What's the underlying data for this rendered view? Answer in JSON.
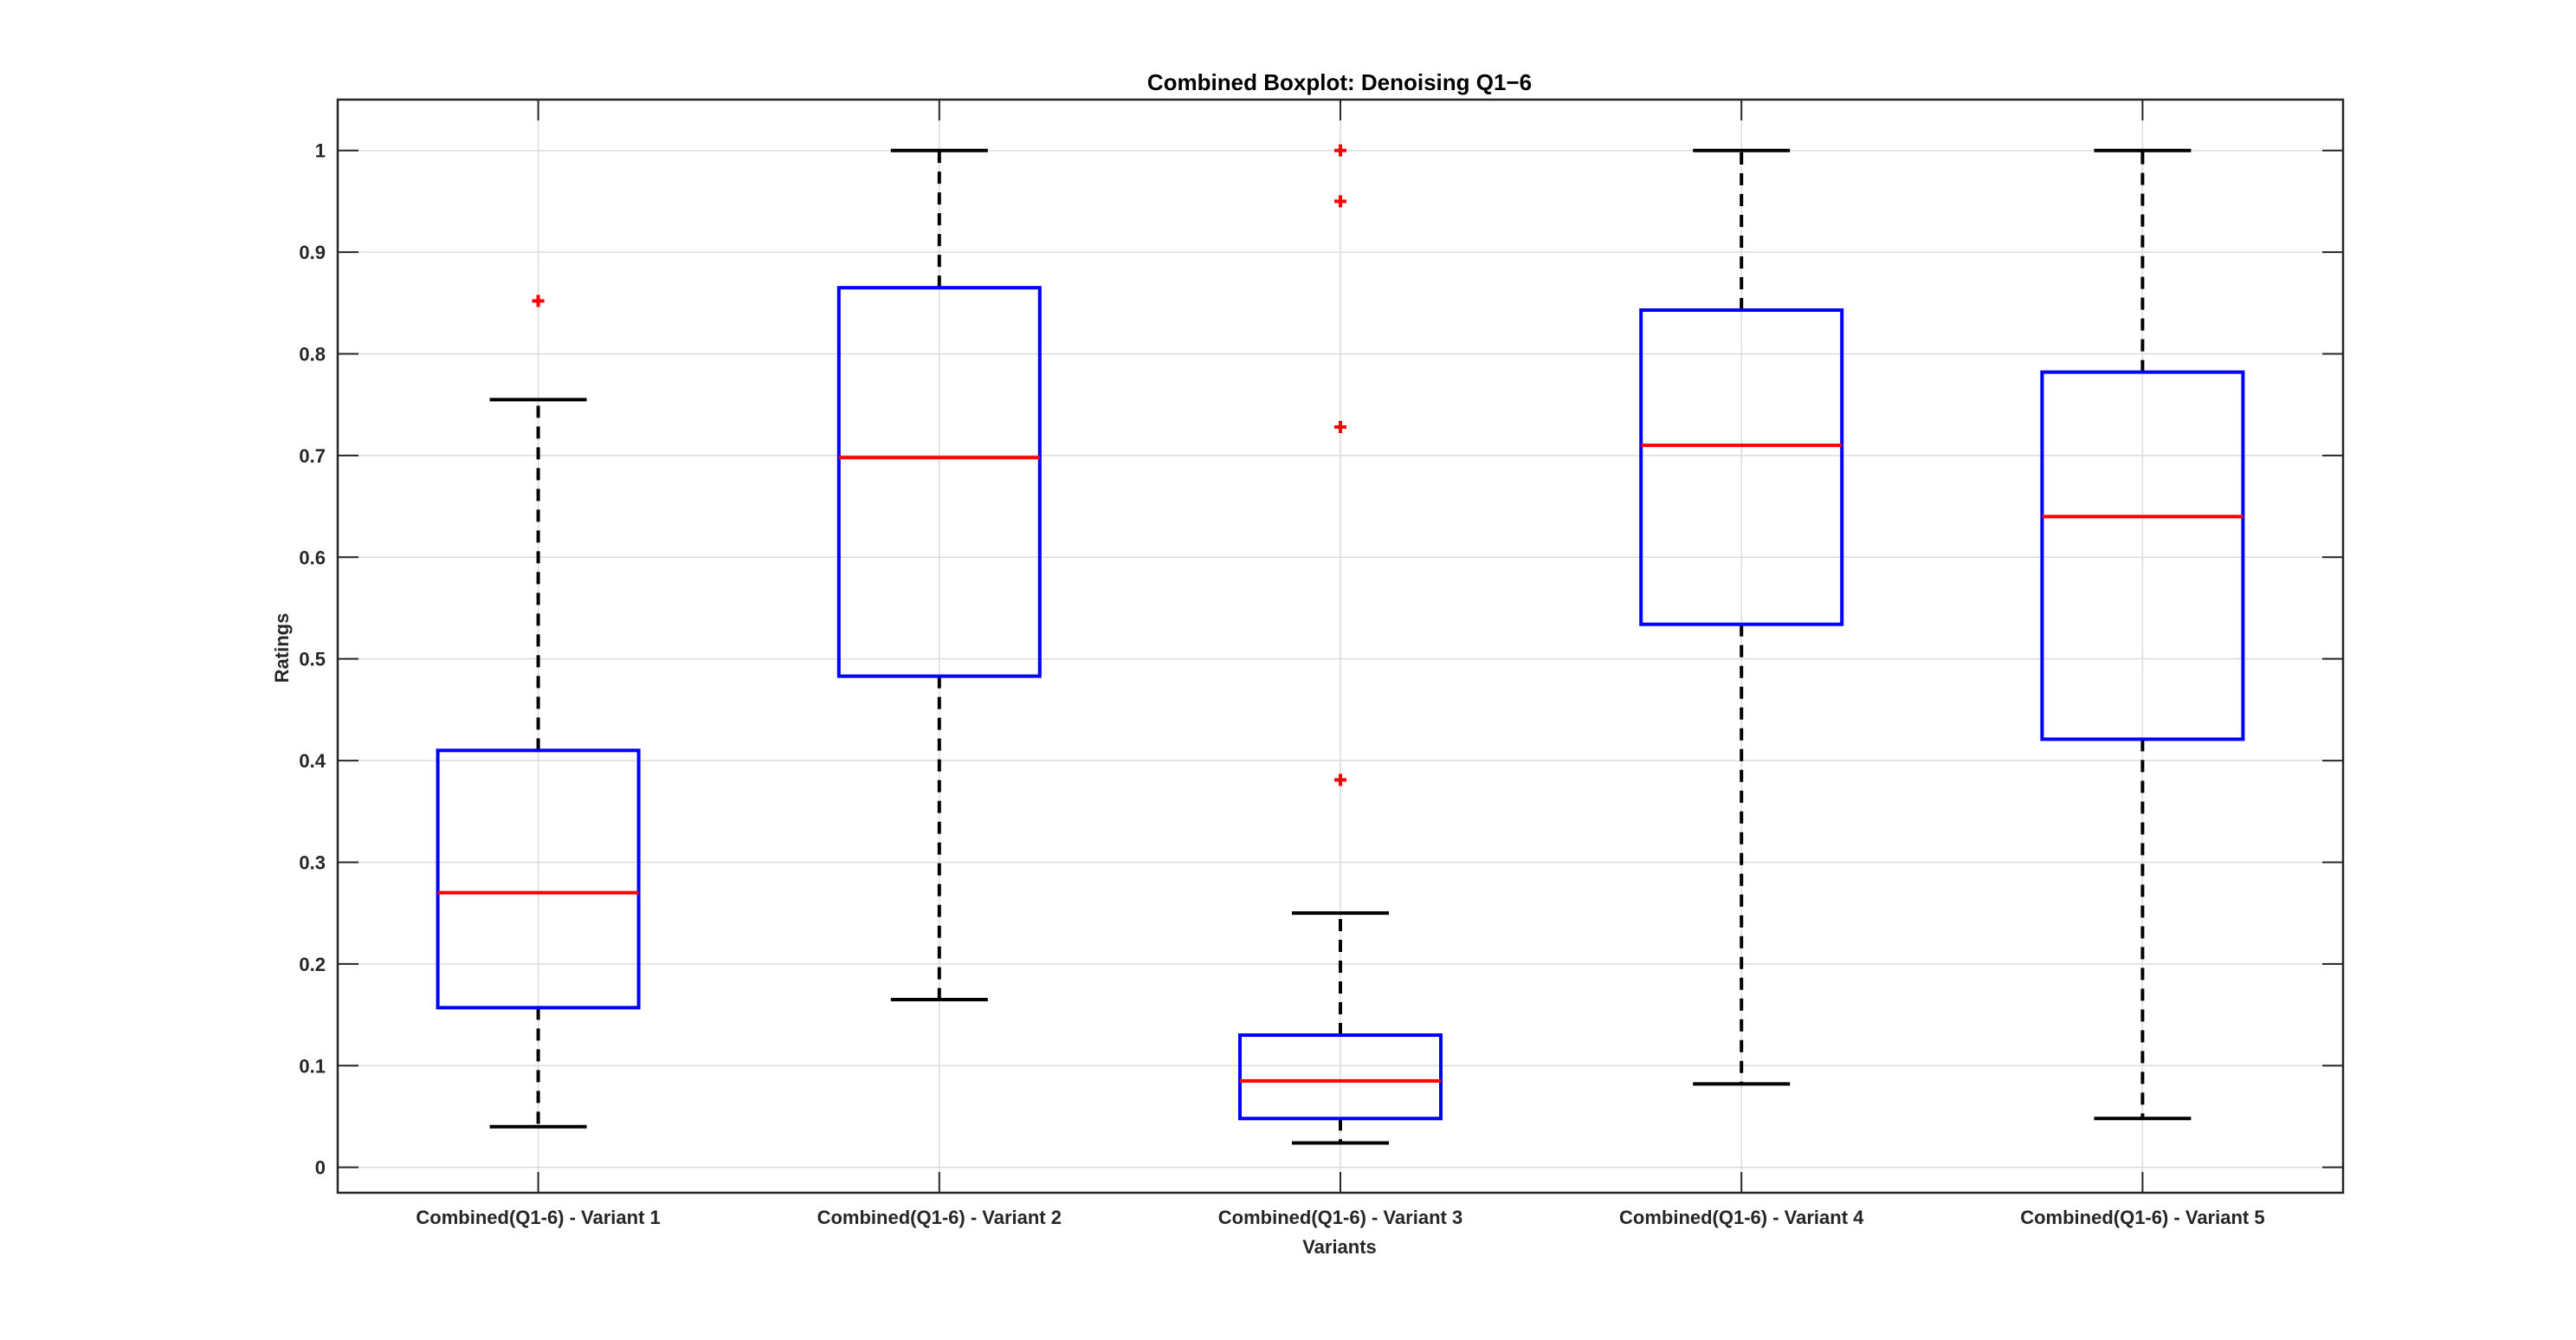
{
  "chart_data": {
    "type": "boxplot",
    "title": "Combined Boxplot: Denoising Q1−6",
    "xlabel": "Variants",
    "ylabel": "Ratings",
    "ylim": [
      -0.025,
      1.05
    ],
    "yticks": [
      0,
      0.1,
      0.2,
      0.3,
      0.4,
      0.5,
      0.6,
      0.7,
      0.8,
      0.9,
      1
    ],
    "yticklabels": [
      "0",
      "0.1",
      "0.2",
      "0.3",
      "0.4",
      "0.5",
      "0.6",
      "0.7",
      "0.8",
      "0.9",
      "1"
    ],
    "grid": true,
    "categories": [
      "Combined(Q1-6) - Variant 1",
      "Combined(Q1-6) - Variant 2",
      "Combined(Q1-6) - Variant 3",
      "Combined(Q1-6) - Variant 4",
      "Combined(Q1-6) - Variant 5"
    ],
    "boxes": [
      {
        "whisker_low": 0.04,
        "q1": 0.157,
        "median": 0.27,
        "q3": 0.41,
        "whisker_high": 0.755,
        "outliers": [
          0.852
        ]
      },
      {
        "whisker_low": 0.165,
        "q1": 0.483,
        "median": 0.698,
        "q3": 0.865,
        "whisker_high": 1.0,
        "outliers": []
      },
      {
        "whisker_low": 0.024,
        "q1": 0.048,
        "median": 0.085,
        "q3": 0.13,
        "whisker_high": 0.25,
        "outliers": [
          0.381,
          0.728,
          0.95,
          1.0
        ]
      },
      {
        "whisker_low": 0.082,
        "q1": 0.534,
        "median": 0.71,
        "q3": 0.843,
        "whisker_high": 1.0,
        "outliers": []
      },
      {
        "whisker_low": 0.048,
        "q1": 0.421,
        "median": 0.64,
        "q3": 0.782,
        "whisker_high": 1.0,
        "outliers": []
      }
    ],
    "colors": {
      "box": "#0000ff",
      "median": "#ff0000",
      "whisker": "#000000",
      "outlier": "#ff0000",
      "grid": "#dcdcdc",
      "axis": "#262626"
    }
  }
}
